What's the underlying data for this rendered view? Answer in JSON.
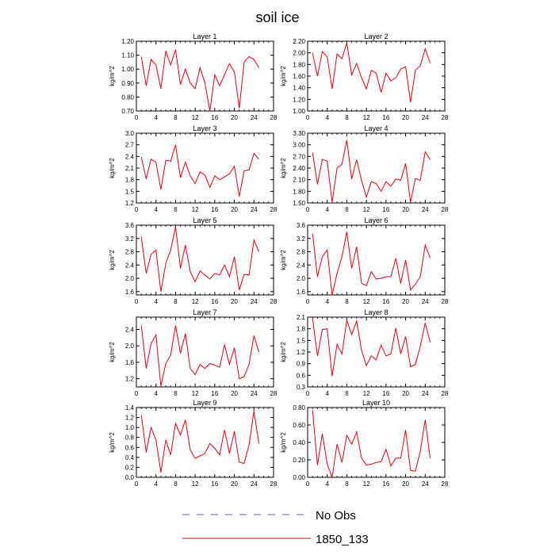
{
  "title": "soil ice",
  "colors": {
    "obs": "#5b5bd6",
    "model": "#e8000b",
    "axis": "#000000"
  },
  "legend": [
    {
      "label": "No Obs",
      "style": "dashed",
      "color": "#5b5bd6"
    },
    {
      "label": "1850_133",
      "style": "solid",
      "color": "#e8000b"
    }
  ],
  "chart_data": [
    {
      "type": "line",
      "title": "Layer 1",
      "ylabel": "kg/m^2",
      "xlim": [
        0,
        28
      ],
      "xticks": [
        "0",
        "4",
        "8",
        "12",
        "16",
        "20",
        "24",
        "28"
      ],
      "ylim": [
        0.7,
        1.2
      ],
      "yticks": [
        "0.70",
        "0.80",
        "0.90",
        "1.00",
        "1.10",
        "1.20"
      ],
      "series": [
        {
          "name": "1850_133",
          "x": [
            1,
            2,
            3,
            4,
            5,
            6,
            7,
            8,
            9,
            10,
            11,
            12,
            13,
            14,
            15,
            16,
            17,
            18,
            19,
            20,
            21,
            22,
            23,
            24,
            25
          ],
          "values": [
            1.09,
            0.88,
            1.07,
            1.03,
            0.86,
            1.13,
            1.03,
            1.14,
            0.89,
            1.0,
            0.9,
            0.86,
            1.01,
            0.9,
            0.7,
            0.96,
            0.88,
            0.96,
            1.04,
            0.98,
            0.72,
            1.05,
            1.09,
            1.07,
            1.01
          ]
        }
      ]
    },
    {
      "type": "line",
      "title": "Layer 2",
      "ylabel": "kg/m^2",
      "xlim": [
        0,
        28
      ],
      "xticks": [
        "0",
        "4",
        "8",
        "12",
        "16",
        "20",
        "24",
        "28"
      ],
      "ylim": [
        1.0,
        2.2
      ],
      "yticks": [
        "1.00",
        "1.20",
        "1.40",
        "1.60",
        "1.80",
        "2.00",
        "2.20"
      ],
      "series": [
        {
          "name": "1850_133",
          "x": [
            1,
            2,
            3,
            4,
            5,
            6,
            7,
            8,
            9,
            10,
            11,
            12,
            13,
            14,
            15,
            16,
            17,
            18,
            19,
            20,
            21,
            22,
            23,
            24,
            25
          ],
          "values": [
            2.0,
            1.6,
            2.02,
            1.93,
            1.38,
            1.98,
            1.9,
            2.17,
            1.62,
            1.82,
            1.57,
            1.38,
            1.7,
            1.65,
            1.32,
            1.65,
            1.52,
            1.57,
            1.72,
            1.76,
            1.15,
            1.7,
            1.78,
            2.07,
            1.82
          ]
        }
      ]
    },
    {
      "type": "line",
      "title": "Layer 3",
      "ylabel": "kg/m^2",
      "xlim": [
        0,
        28
      ],
      "xticks": [
        "0",
        "4",
        "8",
        "12",
        "16",
        "20",
        "24",
        "28"
      ],
      "ylim": [
        1.2,
        3.0
      ],
      "yticks": [
        "1.2",
        "1.5",
        "1.8",
        "2.1",
        "2.4",
        "2.7",
        "3.0"
      ],
      "series": [
        {
          "name": "1850_133",
          "x": [
            1,
            2,
            3,
            4,
            5,
            6,
            7,
            8,
            9,
            10,
            11,
            12,
            13,
            14,
            15,
            16,
            17,
            18,
            19,
            20,
            21,
            22,
            23,
            24,
            25
          ],
          "values": [
            2.38,
            1.82,
            2.33,
            2.25,
            1.55,
            2.3,
            2.28,
            2.7,
            1.85,
            2.25,
            1.9,
            1.7,
            2.0,
            1.92,
            1.6,
            1.9,
            1.8,
            1.87,
            1.95,
            2.15,
            1.37,
            2.03,
            2.05,
            2.48,
            2.33
          ]
        }
      ]
    },
    {
      "type": "line",
      "title": "Layer 4",
      "ylabel": "kg/m^2",
      "xlim": [
        0,
        28
      ],
      "xticks": [
        "0",
        "4",
        "8",
        "12",
        "16",
        "20",
        "24",
        "28"
      ],
      "ylim": [
        1.5,
        3.3
      ],
      "yticks": [
        "1.50",
        "1.80",
        "2.10",
        "2.40",
        "2.70",
        "3.00",
        "3.30"
      ],
      "series": [
        {
          "name": "1850_133",
          "x": [
            1,
            2,
            3,
            4,
            5,
            6,
            7,
            8,
            9,
            10,
            11,
            12,
            13,
            14,
            15,
            16,
            17,
            18,
            19,
            20,
            21,
            22,
            23,
            24,
            25
          ],
          "values": [
            2.8,
            1.98,
            2.62,
            2.58,
            1.52,
            2.4,
            2.5,
            3.12,
            2.12,
            2.62,
            2.08,
            1.65,
            2.05,
            2.0,
            1.8,
            2.05,
            1.93,
            2.12,
            2.08,
            2.52,
            1.52,
            2.13,
            2.08,
            2.82,
            2.62
          ]
        }
      ]
    },
    {
      "type": "line",
      "title": "Layer 5",
      "ylabel": "kg/m^2",
      "xlim": [
        0,
        28
      ],
      "xticks": [
        "0",
        "4",
        "8",
        "12",
        "16",
        "20",
        "24",
        "28"
      ],
      "ylim": [
        1.5,
        3.6
      ],
      "yticks": [
        "1.6",
        "2.0",
        "2.4",
        "2.8",
        "3.2",
        "3.6"
      ],
      "series": [
        {
          "name": "1850_133",
          "x": [
            1,
            2,
            3,
            4,
            5,
            6,
            7,
            8,
            9,
            10,
            11,
            12,
            13,
            14,
            15,
            16,
            17,
            18,
            19,
            20,
            21,
            22,
            23,
            24,
            25
          ],
          "values": [
            3.25,
            2.15,
            2.72,
            2.85,
            1.6,
            2.45,
            2.85,
            3.55,
            2.3,
            3.0,
            2.2,
            1.9,
            2.22,
            2.1,
            1.98,
            2.15,
            2.1,
            2.4,
            2.05,
            2.65,
            1.65,
            2.12,
            2.1,
            3.15,
            2.8
          ]
        }
      ]
    },
    {
      "type": "line",
      "title": "Layer 6",
      "ylabel": "kg/m^2",
      "xlim": [
        0,
        28
      ],
      "xticks": [
        "0",
        "4",
        "8",
        "12",
        "16",
        "20",
        "24",
        "28"
      ],
      "ylim": [
        1.5,
        3.6
      ],
      "yticks": [
        "1.6",
        "2.0",
        "2.4",
        "2.8",
        "3.2",
        "3.6"
      ],
      "series": [
        {
          "name": "1850_133",
          "x": [
            1,
            2,
            3,
            4,
            5,
            6,
            7,
            8,
            9,
            10,
            11,
            12,
            13,
            14,
            15,
            16,
            17,
            18,
            19,
            20,
            21,
            22,
            23,
            24,
            25
          ],
          "values": [
            3.35,
            2.05,
            2.65,
            2.85,
            1.5,
            2.15,
            2.65,
            3.4,
            2.3,
            2.95,
            1.85,
            1.78,
            2.2,
            1.98,
            2.0,
            2.05,
            2.05,
            2.6,
            1.85,
            2.55,
            1.65,
            1.82,
            2.05,
            3.0,
            2.62
          ]
        }
      ]
    },
    {
      "type": "line",
      "title": "Layer 7",
      "ylabel": "kg/m^2",
      "xlim": [
        0,
        28
      ],
      "xticks": [
        "0",
        "4",
        "8",
        "12",
        "16",
        "20",
        "24",
        "28"
      ],
      "ylim": [
        1.0,
        2.7
      ],
      "yticks": [
        "1.2",
        "1.6",
        "2.0",
        "2.4"
      ],
      "series": [
        {
          "name": "1850_133",
          "x": [
            1,
            2,
            3,
            4,
            5,
            6,
            7,
            8,
            9,
            10,
            11,
            12,
            13,
            14,
            15,
            16,
            17,
            18,
            19,
            20,
            21,
            22,
            23,
            24,
            25
          ],
          "values": [
            2.5,
            1.45,
            2.05,
            2.27,
            1.02,
            1.57,
            1.78,
            2.5,
            1.82,
            2.3,
            1.45,
            1.3,
            1.55,
            1.45,
            1.57,
            1.53,
            1.48,
            2.03,
            1.55,
            1.95,
            1.2,
            1.25,
            1.55,
            2.25,
            1.85
          ]
        }
      ]
    },
    {
      "type": "line",
      "title": "Layer 8",
      "ylabel": "kg/m^2",
      "xlim": [
        0,
        28
      ],
      "xticks": [
        "0",
        "4",
        "8",
        "12",
        "16",
        "20",
        "24",
        "28"
      ],
      "ylim": [
        0.3,
        2.1
      ],
      "yticks": [
        "0.3",
        "0.6",
        "0.9",
        "1.2",
        "1.5",
        "1.8",
        "2.1"
      ],
      "series": [
        {
          "name": "1850_133",
          "x": [
            1,
            2,
            3,
            4,
            5,
            6,
            7,
            8,
            9,
            10,
            11,
            12,
            13,
            14,
            15,
            16,
            17,
            18,
            19,
            20,
            21,
            22,
            23,
            24,
            25
          ],
          "values": [
            2.08,
            1.1,
            1.78,
            1.8,
            0.58,
            1.4,
            1.15,
            2.02,
            1.65,
            2.0,
            1.25,
            0.85,
            1.1,
            1.0,
            1.38,
            1.1,
            1.15,
            1.82,
            1.15,
            1.6,
            0.82,
            0.88,
            1.35,
            1.95,
            1.45
          ]
        }
      ]
    },
    {
      "type": "line",
      "title": "Layer 9",
      "ylabel": "kg/m^2",
      "xlim": [
        0,
        28
      ],
      "xticks": [
        "0",
        "4",
        "8",
        "12",
        "16",
        "20",
        "24",
        "28"
      ],
      "ylim": [
        0.0,
        1.4
      ],
      "yticks": [
        "0.0",
        "0.2",
        "0.4",
        "0.6",
        "0.8",
        "1.0",
        "1.2",
        "1.4"
      ],
      "series": [
        {
          "name": "1850_133",
          "x": [
            1,
            2,
            3,
            4,
            5,
            6,
            7,
            8,
            9,
            10,
            11,
            12,
            13,
            14,
            15,
            16,
            17,
            18,
            19,
            20,
            21,
            22,
            23,
            24,
            25
          ],
          "values": [
            1.25,
            0.5,
            1.0,
            0.75,
            0.1,
            0.75,
            0.45,
            1.08,
            0.85,
            1.15,
            0.55,
            0.38,
            0.43,
            0.48,
            0.68,
            0.58,
            0.45,
            0.95,
            0.48,
            0.92,
            0.3,
            0.28,
            0.65,
            1.33,
            0.68
          ]
        }
      ]
    },
    {
      "type": "line",
      "title": "Layer 10",
      "ylabel": "kg/m^2",
      "xlim": [
        0,
        28
      ],
      "xticks": [
        "0",
        "4",
        "8",
        "12",
        "16",
        "20",
        "24",
        "28"
      ],
      "ylim": [
        0.0,
        0.8
      ],
      "yticks": [
        "0.00",
        "0.20",
        "0.40",
        "0.60",
        "0.80"
      ],
      "series": [
        {
          "name": "1850_133",
          "x": [
            1,
            2,
            3,
            4,
            5,
            6,
            7,
            8,
            9,
            10,
            11,
            12,
            13,
            14,
            15,
            16,
            17,
            18,
            19,
            20,
            21,
            22,
            23,
            24,
            25
          ],
          "values": [
            0.77,
            0.14,
            0.5,
            0.15,
            0.0,
            0.38,
            0.17,
            0.48,
            0.38,
            0.52,
            0.22,
            0.14,
            0.15,
            0.17,
            0.18,
            0.32,
            0.13,
            0.22,
            0.22,
            0.54,
            0.08,
            0.07,
            0.3,
            0.66,
            0.22
          ]
        }
      ]
    }
  ]
}
